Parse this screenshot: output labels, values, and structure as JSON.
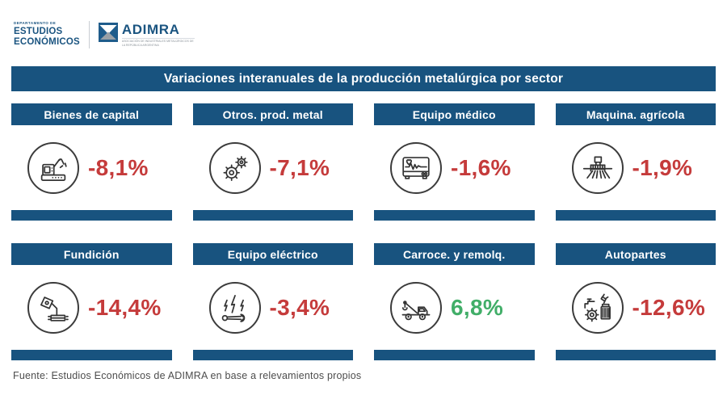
{
  "brand": {
    "department_line1": "DEPARTAMENTO DE",
    "department_line2": "ESTUDIOS",
    "department_line3": "ECONÓMICOS",
    "logo_name": "ADIMRA",
    "logo_tagline": "ASOCIACIÓN DE INDUSTRIALES METALÚRGICOS DE LA REPÚBLICA ARGENTINA"
  },
  "title": "Variaciones interanuales de la producción metalúrgica por sector",
  "sectors": [
    {
      "label": "Bienes de capital",
      "value": "-8,1%",
      "trend": "negative",
      "icon": "robotic-arm-icon"
    },
    {
      "label": "Otros. prod. metal",
      "value": "-7,1%",
      "trend": "negative",
      "icon": "gears-icon"
    },
    {
      "label": "Equipo médico",
      "value": "-1,6%",
      "trend": "negative",
      "icon": "heart-monitor-icon"
    },
    {
      "label": "Maquina. agrícola",
      "value": "-1,9%",
      "trend": "negative",
      "icon": "seeder-icon"
    },
    {
      "label": "Fundición",
      "value": "-14,4%",
      "trend": "negative",
      "icon": "foundry-ladle-icon"
    },
    {
      "label": "Equipo eléctrico",
      "value": "-3,4%",
      "trend": "negative",
      "icon": "lightning-wrench-icon"
    },
    {
      "label": "Carroce. y remolq.",
      "value": "6,8%",
      "trend": "positive",
      "icon": "tow-truck-icon"
    },
    {
      "label": "Autopartes",
      "value": "-12,6%",
      "trend": "negative",
      "icon": "auto-parts-icon"
    }
  ],
  "footer": "Fuente: Estudios Económicos de ADIMRA en base a relevamientos propios",
  "colors": {
    "primary_blue": "#18537f",
    "negative_red": "#c53b3b",
    "positive_green": "#41ae68"
  },
  "chart_data": {
    "type": "table",
    "title": "Variaciones interanuales de la producción metalúrgica por sector",
    "categories": [
      "Bienes de capital",
      "Otros. prod. metal",
      "Equipo médico",
      "Maquina. agrícola",
      "Fundición",
      "Equipo eléctrico",
      "Carroce. y remolq.",
      "Autopartes"
    ],
    "values": [
      -8.1,
      -7.1,
      -1.6,
      -1.9,
      -14.4,
      -3.4,
      6.8,
      -12.6
    ],
    "unit": "%",
    "value_labels": [
      "-8,1%",
      "-7,1%",
      "-1,6%",
      "-1,9%",
      "-14,4%",
      "-3,4%",
      "6,8%",
      "-12,6%"
    ],
    "source": "Fuente: Estudios Económicos de ADIMRA en base a relevamientos propios"
  }
}
